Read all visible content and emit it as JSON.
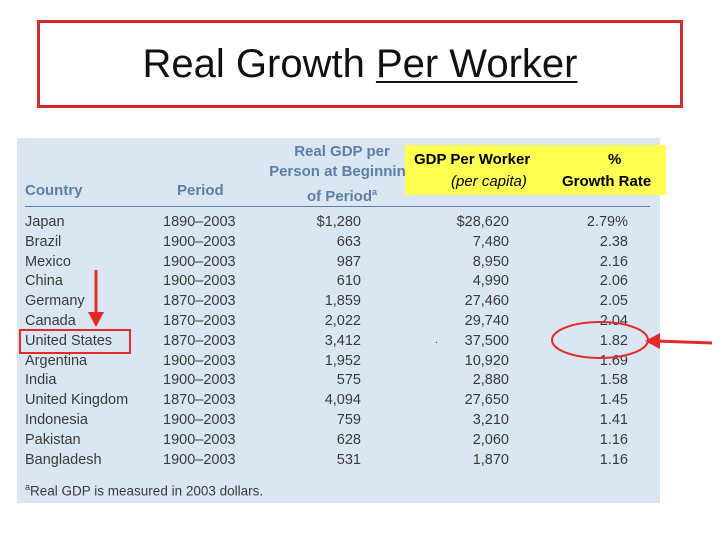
{
  "slide": {
    "title_plain": "Real Growth ",
    "title_underlined": "Per Worker"
  },
  "table": {
    "headers": {
      "country": "Country",
      "period": "Period",
      "gdp_start_lines": [
        "Real GDP per",
        "Person at Beginning",
        "of Period"
      ],
      "gdp_start_sup": "a"
    },
    "rows": [
      {
        "country": "Japan",
        "period": "1890–2003",
        "gdp_start": "$1,280",
        "gdp_end": "$28,620",
        "growth": "2.79%"
      },
      {
        "country": "Brazil",
        "period": "1900–2003",
        "gdp_start": "663",
        "gdp_end": "7,480",
        "growth": "2.38"
      },
      {
        "country": "Mexico",
        "period": "1900–2003",
        "gdp_start": "987",
        "gdp_end": "8,950",
        "growth": "2.16"
      },
      {
        "country": "China",
        "period": "1900–2003",
        "gdp_start": "610",
        "gdp_end": "4,990",
        "growth": "2.06"
      },
      {
        "country": "Germany",
        "period": "1870–2003",
        "gdp_start": "1,859",
        "gdp_end": "27,460",
        "growth": "2.05"
      },
      {
        "country": "Canada",
        "period": "1870–2003",
        "gdp_start": "2,022",
        "gdp_end": "29,740",
        "growth": "2.04"
      },
      {
        "country": "United States",
        "period": "1870–2003",
        "gdp_start": "3,412",
        "gdp_end": "37,500",
        "growth": "1.82"
      },
      {
        "country": "Argentina",
        "period": "1900–2003",
        "gdp_start": "1,952",
        "gdp_end": "10,920",
        "growth": "1.69"
      },
      {
        "country": "India",
        "period": "1900–2003",
        "gdp_start": "575",
        "gdp_end": "2,880",
        "growth": "1.58"
      },
      {
        "country": "United Kingdom",
        "period": "1870–2003",
        "gdp_start": "4,094",
        "gdp_end": "27,650",
        "growth": "1.45"
      },
      {
        "country": "Indonesia",
        "period": "1900–2003",
        "gdp_start": "759",
        "gdp_end": "3,210",
        "growth": "1.41"
      },
      {
        "country": "Pakistan",
        "period": "1900–2003",
        "gdp_start": "628",
        "gdp_end": "2,060",
        "growth": "1.16"
      },
      {
        "country": "Bangladesh",
        "period": "1900–2003",
        "gdp_start": "531",
        "gdp_end": "1,870",
        "growth": "1.16"
      }
    ],
    "footnote": "Real GDP is measured in 2003 dollars.",
    "footnote_sup": "a",
    "stray_mark": "."
  },
  "overlay": {
    "gdp_per_worker": "GDP Per Worker",
    "per_capita": "(per capita)",
    "percent": "%",
    "growth_rate": "Growth Rate"
  },
  "annotations": {
    "color": "#e52a2a",
    "highlighted_row": "United States"
  }
}
